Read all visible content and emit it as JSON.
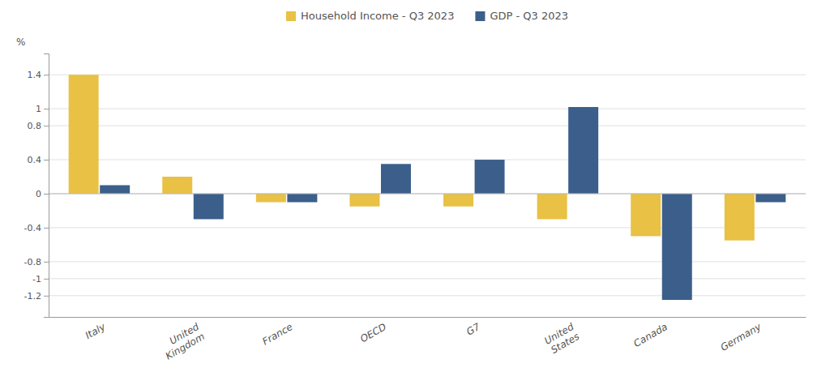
{
  "chart_data": {
    "type": "bar",
    "categories": [
      "Italy",
      "United\nKingdom",
      "France",
      "OECD",
      "G7",
      "United\nStates",
      "Canada",
      "Germany"
    ],
    "series": [
      {
        "name": "Household Income - Q3 2023",
        "color": "#E8C145",
        "values": [
          1.4,
          0.2,
          -0.1,
          -0.15,
          -0.15,
          -0.3,
          -0.5,
          -0.55
        ]
      },
      {
        "name": "GDP - Q3 2023",
        "color": "#3B5F8A",
        "values": [
          0.1,
          -0.3,
          -0.1,
          0.35,
          0.4,
          1.02,
          -1.25,
          -0.1
        ]
      }
    ],
    "ylabel": "%",
    "ylim": [
      -1.45,
      1.65
    ],
    "yticks": [
      -1.2,
      -1,
      -0.8,
      -0.4,
      0,
      0.4,
      0.8,
      1,
      1.4
    ],
    "grid": true,
    "legend": "top"
  }
}
